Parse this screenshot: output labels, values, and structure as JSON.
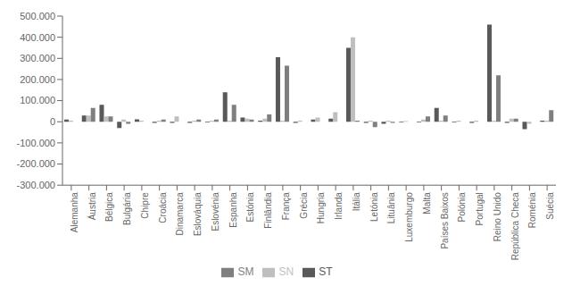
{
  "chart_data": {
    "type": "bar",
    "categories": [
      "Alemanha",
      "Áustria",
      "Bélgica",
      "Bulgária",
      "Chipre",
      "Croácia",
      "Dinamarca",
      "Eslováquia",
      "Eslovénia",
      "Espanha",
      "Estónia",
      "Finlândia",
      "França",
      "Grécia",
      "Hungria",
      "Irlanda",
      "Itália",
      "Letónia",
      "Lituânia",
      "Luxemburgo",
      "Malta",
      "Países Baixos",
      "Polónia",
      "Portugal",
      "Reino Unido",
      "República Checa",
      "Roménia",
      "Suécia"
    ],
    "series": [
      {
        "name": "ST",
        "color": "#595959",
        "values": [
          10000,
          30000,
          80000,
          -30000,
          12000,
          -5000,
          -5000,
          -5000,
          -3000,
          140000,
          20000,
          5000,
          305000,
          -5000,
          10000,
          15000,
          350000,
          -5000,
          -10000,
          -3000,
          -3000,
          65000,
          -3000,
          -5000,
          460000,
          -5000,
          -35000,
          5000
        ]
      },
      {
        "name": "SN",
        "color": "#bfbfbf",
        "values": [
          5000,
          30000,
          25000,
          10000,
          5000,
          5000,
          25000,
          5000,
          5000,
          5000,
          15000,
          15000,
          5000,
          5000,
          20000,
          45000,
          400000,
          5000,
          5000,
          3000,
          10000,
          5000,
          5000,
          5000,
          5000,
          15000,
          -10000,
          5000
        ]
      },
      {
        "name": "SM",
        "color": "#7f7f7f",
        "values": [
          0,
          65000,
          25000,
          -10000,
          0,
          10000,
          0,
          10000,
          10000,
          80000,
          10000,
          35000,
          265000,
          0,
          0,
          0,
          5000,
          -25000,
          -5000,
          0,
          25000,
          30000,
          0,
          0,
          220000,
          15000,
          0,
          55000
        ]
      }
    ],
    "ylim": [
      -300000,
      500000
    ],
    "yticks": [
      {
        "value": -300000,
        "label": "-300.000"
      },
      {
        "value": -200000,
        "label": "-200.000"
      },
      {
        "value": -100000,
        "label": "-100.000"
      },
      0,
      {
        "value": 100000,
        "label": "100.000"
      },
      {
        "value": 200000,
        "label": "200.000"
      },
      {
        "value": 300000,
        "label": "300.000"
      },
      {
        "value": 400000,
        "label": "400.000"
      },
      {
        "value": 500000,
        "label": "500.000"
      }
    ],
    "grid": false,
    "legend": "bottom"
  }
}
